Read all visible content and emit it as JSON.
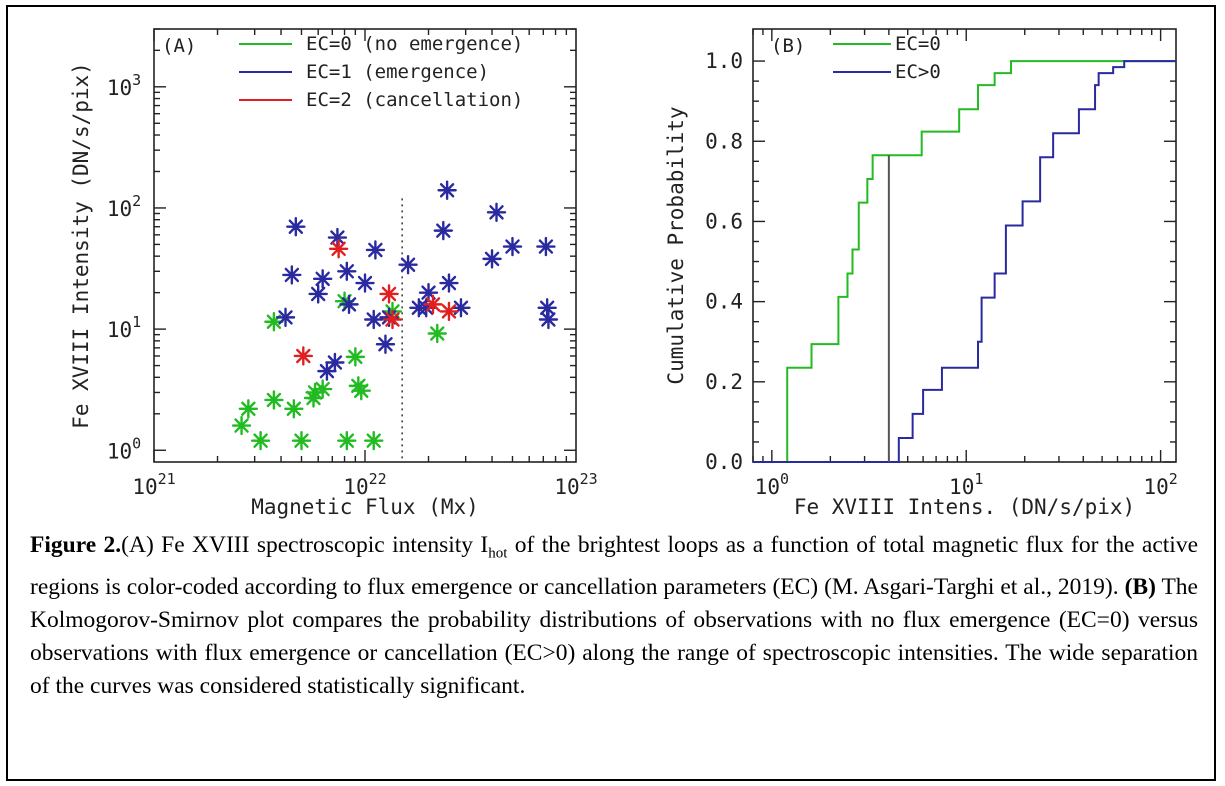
{
  "figure_number": "Figure 2.",
  "caption": {
    "part_a_label": "(A)",
    "part_a_text_1": " Fe XVIII spectroscopic intensity I",
    "part_a_sub": "hot",
    "part_a_text_2": " of the brightest loops as a function of total magnetic flux for the active regions is color-coded according to flux emergence or cancellation parameters (EC) (M. Asgari-Targhi et al., 2019). ",
    "part_b_label": "(B)",
    "part_b_text": " The Kolmogorov-Smirnov plot compares the probability distributions of observations with no flux emergence (EC=0) versus observations with flux emergence or cancellation (EC>0) along the range of spectroscopic intensities. The wide separation of the curves was considered statistically significant."
  },
  "colors": {
    "ec0": "#22bb22",
    "ec1": "#2a2aa0",
    "ec2": "#e02020",
    "ks_line": "#555555",
    "axis": "#222222"
  },
  "chart_data": [
    {
      "type": "scatter",
      "panel_label": "(A)",
      "xlabel": "Magnetic Flux (Mx)",
      "ylabel": "Fe XVIII Intensity (DN/s/pix)",
      "xscale": "log",
      "yscale": "log",
      "xlim": [
        1e+21,
        1e+23
      ],
      "ylim": [
        0.8,
        3000
      ],
      "x_ticks": [
        {
          "value": 1e+21,
          "label": "10",
          "exp": "21"
        },
        {
          "value": 1e+22,
          "label": "10",
          "exp": "22"
        },
        {
          "value": 1e+23,
          "label": "10",
          "exp": "23"
        }
      ],
      "y_ticks": [
        {
          "value": 1,
          "label": "10",
          "exp": "0"
        },
        {
          "value": 10,
          "label": "10",
          "exp": "1"
        },
        {
          "value": 100,
          "label": "10",
          "exp": "2"
        },
        {
          "value": 1000,
          "label": "10",
          "exp": "3"
        }
      ],
      "vline_x": 1.5e+22,
      "legend_position": "top",
      "series": [
        {
          "name": "EC=0 (no emergence)",
          "color_key": "ec0",
          "points": [
            [
              2.6e+21,
              1.6
            ],
            [
              2.8e+21,
              2.2
            ],
            [
              3.2e+21,
              1.2
            ],
            [
              3.7e+21,
              2.6
            ],
            [
              4.6e+21,
              2.2
            ],
            [
              5e+21,
              1.2
            ],
            [
              5.7e+21,
              2.7
            ],
            [
              5.8e+21,
              3.0
            ],
            [
              6.3e+21,
              3.2
            ],
            [
              8.2e+21,
              1.2
            ],
            [
              9e+21,
              5.9
            ],
            [
              9.3e+21,
              3.4
            ],
            [
              9.6e+21,
              3.1
            ],
            [
              1.1e+22,
              1.2
            ],
            [
              3.7e+21,
              11.5
            ],
            [
              8e+21,
              17.0
            ],
            [
              1.35e+22,
              14.0
            ],
            [
              2.2e+22,
              9.2
            ]
          ]
        },
        {
          "name": "EC=1 (emergence)",
          "color_key": "ec1",
          "points": [
            [
              4.2e+21,
              12.5
            ],
            [
              4.5e+21,
              28
            ],
            [
              4.7e+21,
              70
            ],
            [
              6e+21,
              19.5
            ],
            [
              6.3e+21,
              26
            ],
            [
              6.6e+21,
              4.5
            ],
            [
              7.2e+21,
              5.3
            ],
            [
              7.4e+21,
              57
            ],
            [
              8.4e+21,
              16
            ],
            [
              8.2e+21,
              30
            ],
            [
              1e+22,
              24
            ],
            [
              1.1e+22,
              12
            ],
            [
              1.12e+22,
              45
            ],
            [
              1.25e+22,
              7.5
            ],
            [
              1.3e+22,
              12.5
            ],
            [
              1.6e+22,
              34
            ],
            [
              1.8e+22,
              15
            ],
            [
              1.95e+22,
              15
            ],
            [
              2e+22,
              20
            ],
            [
              2.35e+22,
              65
            ],
            [
              2.45e+22,
              140
            ],
            [
              2.5e+22,
              24
            ],
            [
              2.85e+22,
              15
            ],
            [
              4e+22,
              38
            ],
            [
              4.2e+22,
              92
            ],
            [
              5e+22,
              48
            ],
            [
              7.2e+22,
              48
            ],
            [
              7.3e+22,
              15
            ],
            [
              7.4e+22,
              12
            ]
          ]
        },
        {
          "name": "EC=2 (cancellation)",
          "color_key": "ec2",
          "points": [
            [
              5.1e+21,
              6.0
            ],
            [
              7.5e+21,
              46
            ],
            [
              1.3e+22,
              19.5
            ],
            [
              1.35e+22,
              12
            ],
            [
              2.1e+22,
              16
            ],
            [
              2.5e+22,
              14
            ]
          ]
        }
      ]
    },
    {
      "type": "line",
      "step": true,
      "panel_label": "(B)",
      "xlabel": "Fe XVIII Intens. (DN/s/pix)",
      "ylabel": "Cumulative Probability",
      "xscale": "log",
      "yscale": "linear",
      "xlim": [
        0.8,
        120
      ],
      "ylim": [
        0,
        1.08
      ],
      "x_ticks": [
        {
          "value": 1,
          "label": "10",
          "exp": "0"
        },
        {
          "value": 10,
          "label": "10",
          "exp": "1"
        },
        {
          "value": 100,
          "label": "10",
          "exp": "2"
        }
      ],
      "y_ticks": [
        {
          "value": 0.0,
          "label": "0.0"
        },
        {
          "value": 0.2,
          "label": "0.2"
        },
        {
          "value": 0.4,
          "label": "0.4"
        },
        {
          "value": 0.6,
          "label": "0.6"
        },
        {
          "value": 0.8,
          "label": "0.8"
        },
        {
          "value": 1.0,
          "label": "1.0"
        }
      ],
      "ks_vline": {
        "x": 4.0,
        "y_from": 0.0,
        "y_to": 0.765
      },
      "legend_position": "top-left",
      "series": [
        {
          "name": "EC=0",
          "color_key": "ec0",
          "x": [
            0.8,
            1.2,
            1.2,
            1.6,
            1.6,
            2.2,
            2.2,
            2.45,
            2.45,
            2.6,
            2.6,
            2.8,
            2.8,
            3.1,
            3.1,
            3.3,
            3.3,
            5.9,
            5.9,
            9.2,
            9.2,
            11.5,
            11.5,
            14.0,
            14.0,
            17.0,
            17.0,
            120
          ],
          "y": [
            0.0,
            0.0,
            0.235,
            0.235,
            0.294,
            0.294,
            0.412,
            0.412,
            0.47,
            0.47,
            0.53,
            0.53,
            0.647,
            0.647,
            0.706,
            0.706,
            0.765,
            0.765,
            0.824,
            0.824,
            0.88,
            0.88,
            0.94,
            0.94,
            0.97,
            0.97,
            1.0,
            1.0
          ]
        },
        {
          "name": "EC>0",
          "color_key": "ec1",
          "x": [
            0.8,
            4.5,
            4.5,
            5.3,
            5.3,
            6.0,
            6.0,
            7.5,
            7.5,
            11.5,
            11.5,
            12.0,
            12.0,
            14.0,
            14.0,
            16.0,
            16.0,
            19.5,
            19.5,
            24.0,
            24.0,
            28.0,
            28.0,
            38.0,
            38.0,
            46.0,
            46.0,
            48.0,
            48.0,
            57.0,
            57.0,
            65.0,
            65.0,
            70.0,
            70.0,
            120
          ],
          "y": [
            0.0,
            0.0,
            0.06,
            0.06,
            0.12,
            0.12,
            0.18,
            0.18,
            0.235,
            0.235,
            0.3,
            0.3,
            0.41,
            0.41,
            0.47,
            0.47,
            0.59,
            0.59,
            0.65,
            0.65,
            0.76,
            0.76,
            0.82,
            0.82,
            0.88,
            0.88,
            0.94,
            0.94,
            0.97,
            0.97,
            0.985,
            0.985,
            1.0,
            1.0,
            1.0,
            1.0
          ]
        }
      ]
    }
  ]
}
